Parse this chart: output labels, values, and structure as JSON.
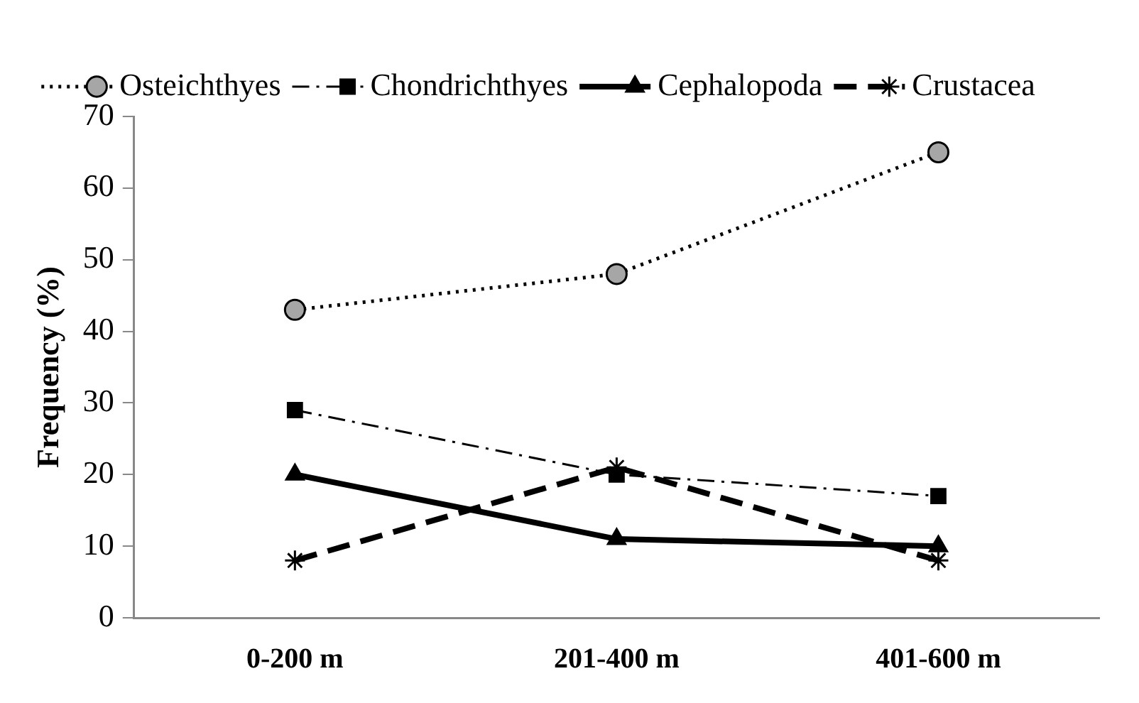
{
  "chart_data": {
    "type": "line",
    "ylabel": "Frequency (%)",
    "categories": [
      "0-200 m",
      "201-400 m",
      "401-600 m"
    ],
    "series": [
      {
        "name": "Osteichthyes",
        "color": "#000000",
        "colors": [
          "#a6a6a6",
          "#a6a6a6",
          "#a6a6a6"
        ],
        "marker": "circle",
        "line_style": "dotted",
        "values": [
          43,
          48,
          65
        ]
      },
      {
        "name": "Chondrichthyes",
        "color": "#000000",
        "marker": "square",
        "line_style": "dashdot",
        "values": [
          29,
          20,
          17
        ]
      },
      {
        "name": "Cephalopoda",
        "color": "#000000",
        "marker": "triangle",
        "line_style": "solid",
        "values": [
          20,
          11,
          10
        ]
      },
      {
        "name": "Crustacea",
        "color": "#000000",
        "marker": "cross",
        "line_style": "dashed",
        "values": [
          8,
          21,
          8
        ]
      }
    ],
    "ylim": [
      0,
      70
    ],
    "yticks": [
      0,
      10,
      20,
      30,
      40,
      50,
      60,
      70
    ],
    "grid": false,
    "legend": "top"
  }
}
